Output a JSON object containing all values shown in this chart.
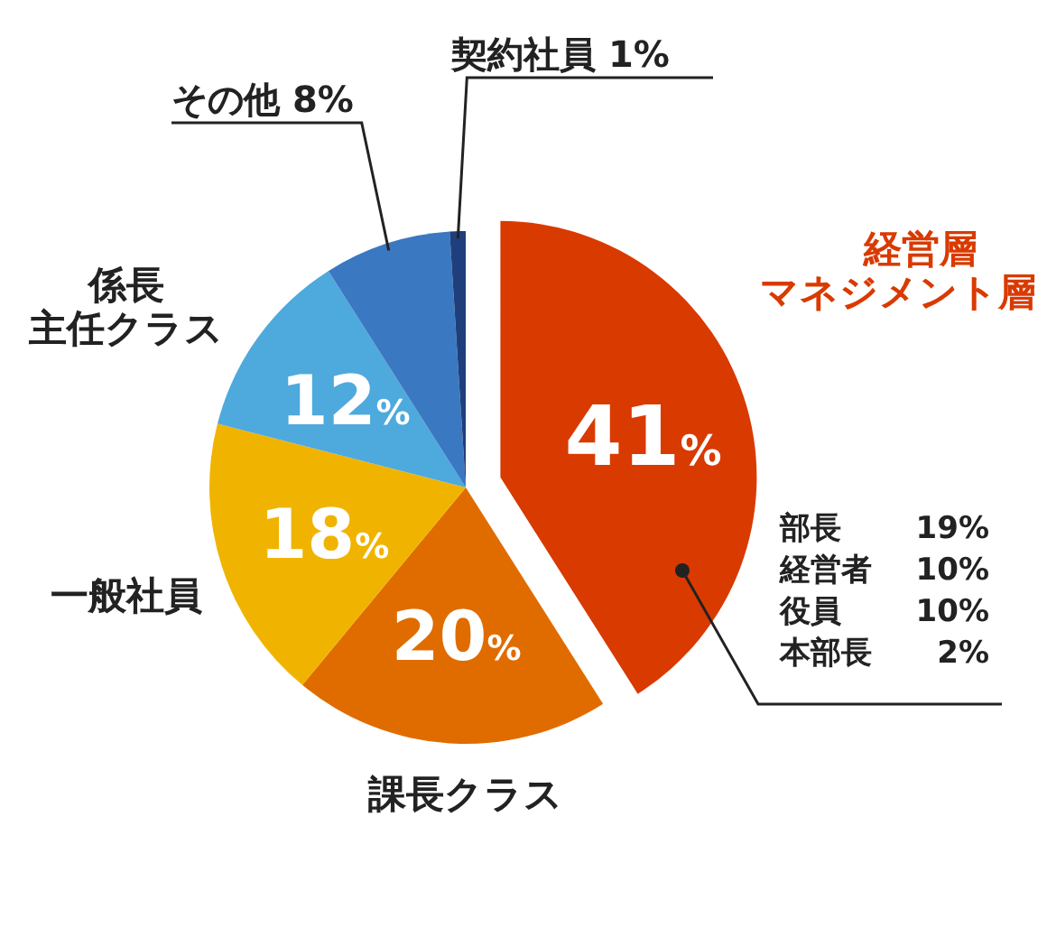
{
  "chart_data": {
    "type": "pie",
    "categories": [
      "経営層マネジメント層",
      "課長クラス",
      "一般社員",
      "係長主任クラス",
      "その他",
      "契約社員"
    ],
    "values": [
      41,
      20,
      18,
      12,
      8,
      1
    ],
    "colors": [
      "#d93a00",
      "#e06c00",
      "#f0b400",
      "#4ea9dd",
      "#3b78c2",
      "#1f3f7c"
    ],
    "value_labels": [
      "41%",
      "20%",
      "18%",
      "12%",
      "8%",
      "1%"
    ],
    "annotations": [
      "部長 19%",
      "経営者 10%",
      "役員 10%",
      "本部長 2%"
    ]
  }
}
